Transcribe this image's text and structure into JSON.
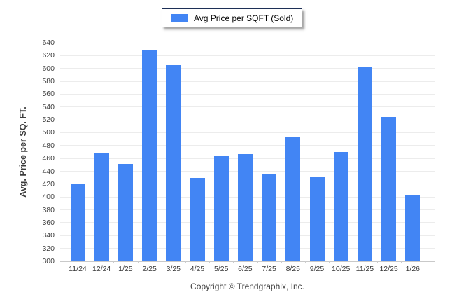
{
  "chart_data": {
    "type": "bar",
    "title": "",
    "xlabel": "",
    "ylabel": "Avg. Price per SQ. FT.",
    "categories": [
      "11/24",
      "12/24",
      "1/25",
      "2/25",
      "3/25",
      "4/25",
      "5/25",
      "6/25",
      "7/25",
      "8/25",
      "9/25",
      "10/25",
      "11/25",
      "12/25",
      "1/26"
    ],
    "series": [
      {
        "name": "Avg Price per SQFT (Sold)",
        "values": [
          420,
          469,
          452,
          628,
          605,
          430,
          465,
          467,
          436,
          494,
          431,
          470,
          603,
          525,
          402
        ]
      }
    ],
    "ylim": [
      300,
      640
    ],
    "ytick_step": 20,
    "grid": true,
    "legend_position": "top-center",
    "bar_color": "#4285F4",
    "gridline_color": "#ececec"
  },
  "footer": {
    "copyright": "Copyright © Trendgraphix, Inc."
  }
}
